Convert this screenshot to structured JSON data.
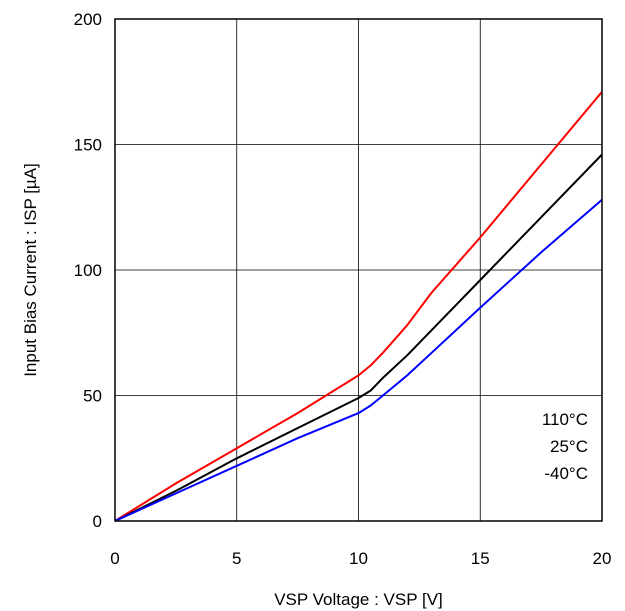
{
  "chart_data": {
    "type": "line",
    "title": "",
    "xlabel": "VSP Voltage : VSP [V]",
    "ylabel": "Input Bias Current : ISP [µA]",
    "xlim": [
      0,
      20
    ],
    "ylim": [
      0,
      200
    ],
    "xticks": [
      "0",
      "5",
      "10",
      "15",
      "20"
    ],
    "yticks": [
      "0",
      "50",
      "100",
      "150",
      "200"
    ],
    "grid": true,
    "legend_position": "bottom-right",
    "series": [
      {
        "name": "110°C",
        "color": "#ff0000",
        "x": [
          0,
          2.5,
          5,
          7.5,
          10,
          10.5,
          11,
          12,
          13,
          15,
          17.5,
          20
        ],
        "y": [
          0,
          15,
          29,
          43,
          58,
          62,
          67,
          78,
          91,
          113,
          142,
          171
        ]
      },
      {
        "name": "25°C",
        "color": "#000000",
        "x": [
          0,
          2.5,
          5,
          7.5,
          10,
          10.5,
          11,
          12,
          13,
          15,
          17.5,
          20
        ],
        "y": [
          0,
          12,
          25,
          37,
          49,
          52,
          57,
          66,
          76,
          96,
          121,
          146
        ]
      },
      {
        "name": "-40°C",
        "color": "#0000ff",
        "x": [
          0,
          2.5,
          5,
          7.5,
          10,
          10.5,
          11,
          12,
          13,
          15,
          17.5,
          20
        ],
        "y": [
          0,
          11,
          22,
          33,
          43,
          46,
          50,
          58,
          67,
          85,
          107,
          128
        ]
      }
    ]
  }
}
